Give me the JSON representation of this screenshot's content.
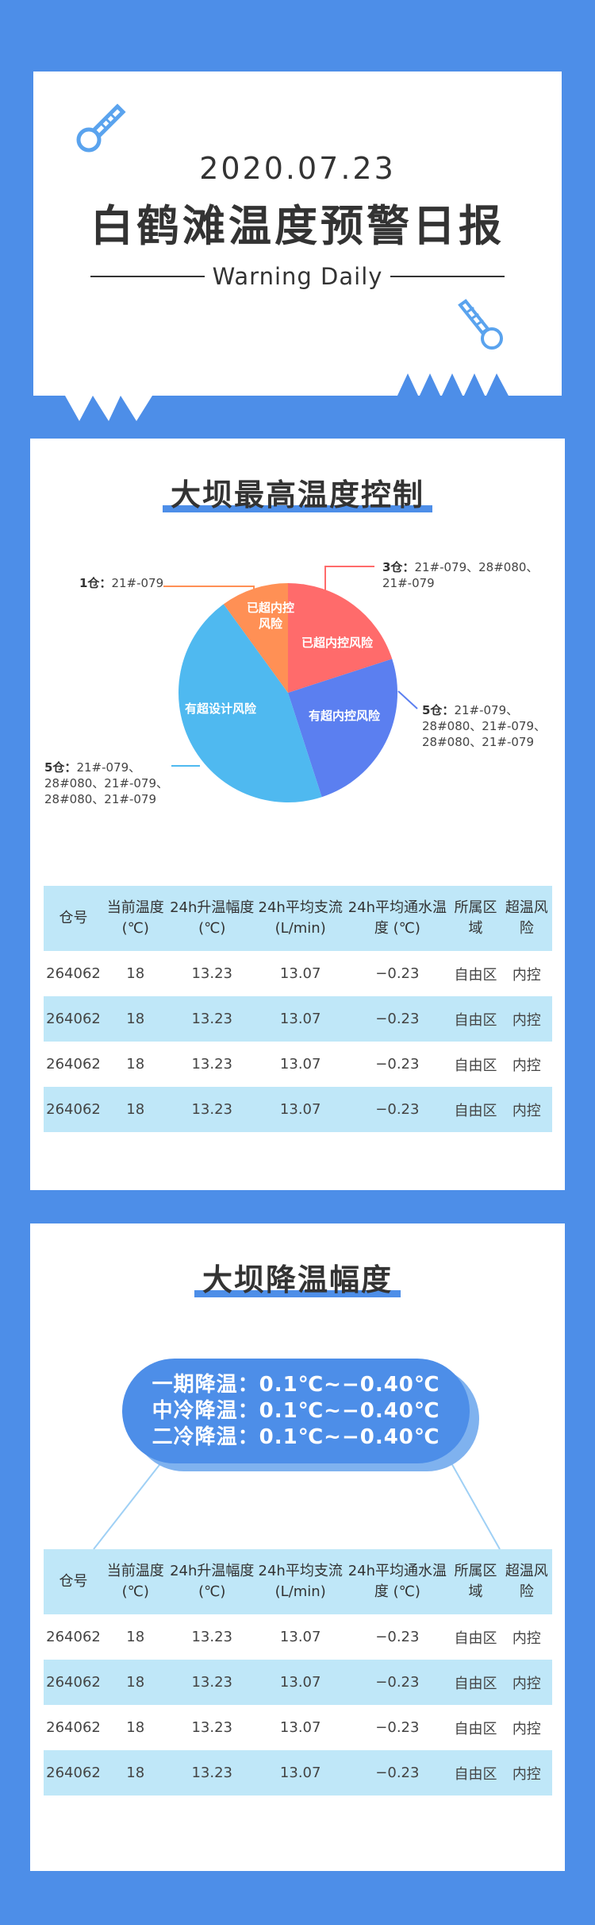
{
  "colors": {
    "background": "#4d8ee8",
    "card": "#ffffff",
    "table_header": "#bfe7f8",
    "pie_red": "#ff6b6b",
    "pie_blue": "#5b7ff0",
    "pie_cyan": "#4fb9f0",
    "pie_orange": "#ff9055"
  },
  "header": {
    "date": "2020.07.23",
    "title": "白鹤滩温度预警日报",
    "subtitle": "Warning Daily",
    "icons": [
      "thermometer-icon",
      "thermometer-icon"
    ]
  },
  "section1": {
    "title": "大坝最高温度控制",
    "callouts": [
      {
        "label": "1仓：",
        "text": "21#-079"
      },
      {
        "label": "3仓：",
        "text": "21#-079、28#080、21#-079"
      },
      {
        "label": "5仓：",
        "text": "21#-079、28#080、21#-079、28#080、21#-079"
      },
      {
        "label": "5仓：",
        "text": "21#-079、28#080、21#-079、28#080、21#-079"
      }
    ],
    "table": {
      "headers": [
        "仓号",
        "当前温度 (℃)",
        "24h升温幅度(℃)",
        "24h平均支流(L/min)",
        "24h平均通水温度 (℃)",
        "所属区域",
        "超温风险"
      ],
      "rows": [
        [
          "264062",
          "18",
          "13.23",
          "13.07",
          "−0.23",
          "自由区",
          "内控"
        ],
        [
          "264062",
          "18",
          "13.23",
          "13.07",
          "−0.23",
          "自由区",
          "内控"
        ],
        [
          "264062",
          "18",
          "13.23",
          "13.07",
          "−0.23",
          "自由区",
          "内控"
        ],
        [
          "264062",
          "18",
          "13.23",
          "13.07",
          "−0.23",
          "自由区",
          "内控"
        ]
      ]
    }
  },
  "chart_data": {
    "type": "pie",
    "labels": [
      "已超内控风险",
      "有超内控风险",
      "有超设计风险",
      "已超内控风险"
    ],
    "values": [
      20,
      25,
      45,
      10
    ],
    "colors": [
      "#ff6b6b",
      "#5b7ff0",
      "#4fb9f0",
      "#ff9055"
    ]
  },
  "section2": {
    "title": "大坝降温幅度",
    "pill": [
      "一期降温：0.1℃~−0.40℃",
      "中冷降温：0.1℃~−0.40℃",
      "二冷降温：0.1℃~−0.40℃"
    ],
    "table": {
      "headers": [
        "仓号",
        "当前温度 (℃)",
        "24h升温幅度(℃)",
        "24h平均支流(L/min)",
        "24h平均通水温度 (℃)",
        "所属区域",
        "超温风险"
      ],
      "rows": [
        [
          "264062",
          "18",
          "13.23",
          "13.07",
          "−0.23",
          "自由区",
          "内控"
        ],
        [
          "264062",
          "18",
          "13.23",
          "13.07",
          "−0.23",
          "自由区",
          "内控"
        ],
        [
          "264062",
          "18",
          "13.23",
          "13.07",
          "−0.23",
          "自由区",
          "内控"
        ],
        [
          "264062",
          "18",
          "13.23",
          "13.07",
          "−0.23",
          "自由区",
          "内控"
        ]
      ]
    }
  }
}
